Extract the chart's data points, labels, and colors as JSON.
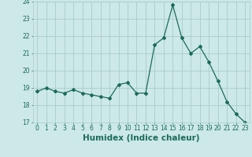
{
  "x": [
    0,
    1,
    2,
    3,
    4,
    5,
    6,
    7,
    8,
    9,
    10,
    11,
    12,
    13,
    14,
    15,
    16,
    17,
    18,
    19,
    20,
    21,
    22,
    23
  ],
  "y": [
    18.8,
    19.0,
    18.8,
    18.7,
    18.9,
    18.7,
    18.6,
    18.5,
    18.4,
    19.2,
    19.3,
    18.7,
    18.7,
    21.5,
    21.9,
    23.8,
    21.9,
    21.0,
    21.4,
    20.5,
    19.4,
    18.2,
    17.5,
    17.0
  ],
  "line_color": "#1a6b5a",
  "bg_color": "#cce8e8",
  "grid_color": "#aacccc",
  "xlabel": "Humidex (Indice chaleur)",
  "ylabel": "",
  "ylim": [
    17,
    24
  ],
  "xlim_min": -0.5,
  "xlim_max": 23.5,
  "yticks": [
    17,
    18,
    19,
    20,
    21,
    22,
    23,
    24
  ],
  "xticks": [
    0,
    1,
    2,
    3,
    4,
    5,
    6,
    7,
    8,
    9,
    10,
    11,
    12,
    13,
    14,
    15,
    16,
    17,
    18,
    19,
    20,
    21,
    22,
    23
  ],
  "tick_fontsize": 5.5,
  "xlabel_fontsize": 7.5,
  "marker": "D",
  "marker_size": 2.0,
  "linewidth": 0.9
}
